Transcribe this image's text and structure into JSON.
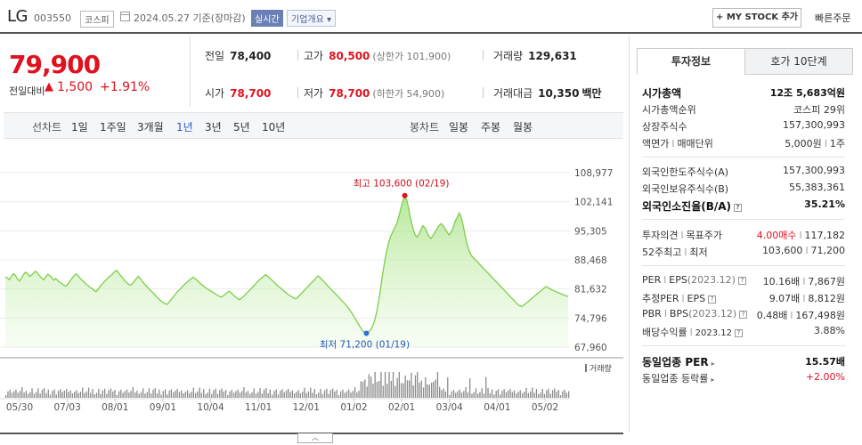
{
  "header": {
    "name": "LG",
    "code": "003550",
    "market": "코스피",
    "date": "2024.05.27 기준(장마감)",
    "realtime": "실시간",
    "corp_info": "기업개요 ▾",
    "mystock": "+ MY STOCK 추가",
    "quick_order": "빠른주문"
  },
  "summary": {
    "price": "79,900",
    "compare_label": "전일대비",
    "compare_arrow": "▲",
    "compare_value": "1,500",
    "compare_pct": "+1.91%",
    "prev_label": "전일",
    "prev": "78,400",
    "high_label": "고가",
    "high": "80,500",
    "upper_limit": "(상한가 101,900)",
    "volume_label": "거래량",
    "volume": "129,631",
    "open_label": "시가",
    "open": "78,700",
    "low_label": "저가",
    "low": "78,700",
    "lower_limit": "(하한가 54,900)",
    "amount_label": "거래대금",
    "amount": "10,350",
    "amount_unit": "백만"
  },
  "tabs": {
    "line_head": "선차트",
    "line": [
      "1일",
      "1주일",
      "3개월",
      "1년",
      "3년",
      "5년",
      "10년"
    ],
    "active": "1년",
    "candle_head": "봉차트",
    "candle": [
      "일봉",
      "주봉",
      "월봉"
    ]
  },
  "chart_data": {
    "type": "area",
    "y_ticks": [
      "108,977",
      "102,141",
      "95,305",
      "88,468",
      "81,632",
      "74,796",
      "67,960"
    ],
    "ylim": [
      67960,
      108977
    ],
    "x_ticks": [
      "05/30",
      "07/03",
      "08/01",
      "09/01",
      "10/04",
      "11/01",
      "12/01",
      "01/02",
      "02/01",
      "03/04",
      "04/01",
      "05/02"
    ],
    "high_label": "최고 103,600 (02/19)",
    "high": 103600,
    "low_label": "최저 71,200 (01/19)",
    "low": 71200,
    "volume_label": "거래량",
    "values": [
      84500,
      84200,
      83800,
      84600,
      85200,
      84800,
      84000,
      83500,
      84200,
      85000,
      85600,
      85200,
      84600,
      84900,
      85400,
      85800,
      85300,
      84700,
      84200,
      83800,
      84400,
      85100,
      84800,
      84300,
      83700,
      84100,
      83600,
      83200,
      82900,
      82500,
      82300,
      82800,
      83500,
      84100,
      84700,
      85200,
      84800,
      84200,
      83700,
      83300,
      82800,
      82400,
      82000,
      81700,
      81300,
      81000,
      81600,
      82200,
      82800,
      83300,
      83800,
      84300,
      84700,
      85100,
      85600,
      86000,
      85500,
      84900,
      84300,
      83700,
      83200,
      82800,
      82500,
      82900,
      83500,
      84100,
      84600,
      84000,
      83400,
      82800,
      82300,
      81800,
      81300,
      80800,
      80300,
      79800,
      79300,
      78900,
      78500,
      78200,
      78000,
      78400,
      79000,
      79600,
      80200,
      80800,
      81300,
      81800,
      82300,
      82800,
      83200,
      83600,
      84000,
      84400,
      84100,
      83700,
      83200,
      82800,
      82400,
      82000,
      81700,
      81400,
      81100,
      80800,
      80500,
      80200,
      79900,
      79700,
      80000,
      80400,
      80800,
      81100,
      80700,
      80200,
      79800,
      79400,
      79100,
      79400,
      79800,
      80300,
      80800,
      81300,
      81800,
      82300,
      82800,
      83300,
      83800,
      84200,
      84600,
      85000,
      84600,
      84200,
      83800,
      83300,
      82900,
      82400,
      82000,
      81600,
      81200,
      80800,
      80400,
      80100,
      79800,
      79500,
      79300,
      79700,
      80200,
      80700,
      81200,
      81700,
      82200,
      82700,
      83200,
      83700,
      84200,
      84700,
      84300,
      83800,
      83300,
      82800,
      82300,
      81800,
      81300,
      80800,
      80300,
      79800,
      79300,
      78800,
      78300,
      77800,
      77200,
      76500,
      75800,
      75000,
      74200,
      73400,
      72600,
      71900,
      71400,
      71200,
      71500,
      72000,
      72800,
      74000,
      76000,
      78500,
      81500,
      85000,
      88000,
      90500,
      92500,
      94000,
      95000,
      96000,
      97000,
      98500,
      100500,
      102200,
      103600,
      102500,
      100500,
      98000,
      96000,
      94500,
      93800,
      94500,
      95500,
      96500,
      96000,
      95000,
      94000,
      93500,
      94200,
      95000,
      95800,
      96500,
      97000,
      96500,
      95800,
      95000,
      94300,
      95000,
      96000,
      97500,
      98500,
      99500,
      98500,
      96500,
      94000,
      92000,
      90500,
      89500,
      89000,
      88500,
      88000,
      87500,
      87000,
      86500,
      86000,
      85500,
      85000,
      84500,
      84000,
      83500,
      83000,
      82500,
      82000,
      81500,
      81000,
      80500,
      80000,
      79500,
      79000,
      78500,
      78000,
      77700,
      77500,
      77800,
      78200,
      78600,
      79000,
      79400,
      79800,
      80200,
      80600,
      81000,
      81400,
      81800,
      82200,
      82000,
      81700,
      81400,
      81200,
      81000,
      80800,
      80600,
      80400,
      80200,
      80000,
      79900
    ]
  },
  "panel": {
    "tab_info": "투자정보",
    "tab_ask": "호가 10단계",
    "market_cap_label": "시가총액",
    "market_cap": "12조 5,683억원",
    "cap_rank_label": "시가총액순위",
    "cap_rank": "코스피 29위",
    "shares_label": "상장주식수",
    "shares": "157,300,993",
    "par_label": "액면가",
    "par_sep": "l",
    "unit_label": "매매단위",
    "par": "5,000원",
    "unit": "1주",
    "foreign_limit_label": "외국인한도주식수(A)",
    "foreign_limit": "157,300,993",
    "foreign_hold_label": "외국인보유주식수(B)",
    "foreign_hold": "55,383,361",
    "foreign_ratio_label": "외국인소진율(B/A)",
    "foreign_ratio": "35.21%",
    "opinion_label": "투자의견",
    "target_label": "목표주가",
    "opinion": "4.00매수",
    "target": "117,182",
    "hl52_label": "52주최고",
    "low52_label": "최저",
    "high52": "103,600",
    "low52": "71,200",
    "per_label": "PER",
    "eps_label": "EPS",
    "eps_year": "(2023.12)",
    "per": "10.16배",
    "eps": "7,867원",
    "est_per_label": "추정PER",
    "est_eps_label": "EPS",
    "est_per": "9.07배",
    "est_eps": "8,812원",
    "pbr_label": "PBR",
    "bps_label": "BPS",
    "bps_year": "(2023.12)",
    "pbr": "0.48배",
    "bps": "167,498원",
    "dy_label": "배당수익률",
    "dy_year": "2023.12",
    "dy": "3.88%",
    "ind_per_label": "동일업종 PER",
    "ind_per": "15.57배",
    "ind_rate_label": "동일업종 등락률",
    "ind_rate": "+2.00%"
  }
}
